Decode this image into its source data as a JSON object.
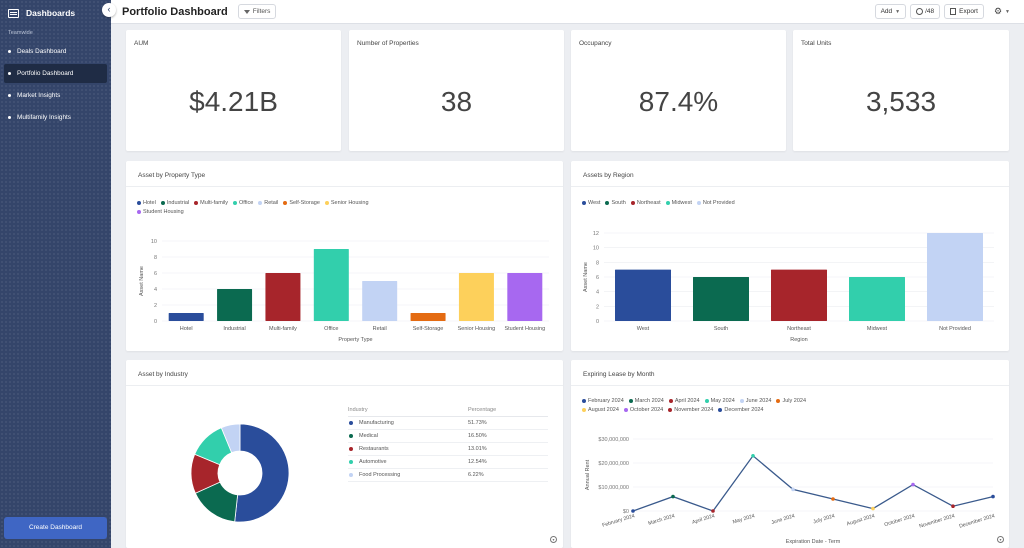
{
  "sidebar": {
    "title": "Dashboards",
    "section": "Teamwide",
    "items": [
      {
        "label": "Deals Dashboard"
      },
      {
        "label": "Portfolio Dashboard"
      },
      {
        "label": "Market Insights"
      },
      {
        "label": "Multifamily Insights"
      }
    ],
    "create_label": "Create Dashboard"
  },
  "header": {
    "title": "Portfolio Dashboard",
    "filters_label": "Filters",
    "add_label": "Add",
    "users_count": "/48",
    "export_label": "Export"
  },
  "kpis": [
    {
      "label": "AUM",
      "value": "$4.21B"
    },
    {
      "label": "Number of Properties",
      "value": "38"
    },
    {
      "label": "Occupancy",
      "value": "87.4%"
    },
    {
      "label": "Total Units",
      "value": "3,533"
    }
  ],
  "property_chart": {
    "title": "Asset by Property Type",
    "chart_data": {
      "type": "bar",
      "categories": [
        "Hotel",
        "Industrial",
        "Multi-family",
        "Office",
        "Retail",
        "Self-Storage",
        "Senior Housing",
        "Student Housing"
      ],
      "values": [
        1,
        4,
        6,
        9,
        5,
        1,
        6,
        6
      ],
      "colors": [
        "#2a4d9b",
        "#0b6a50",
        "#a7252b",
        "#32cfac",
        "#c2d3f4",
        "#e46b12",
        "#fdd05b",
        "#a768f0"
      ],
      "xlabel": "Property Type",
      "ylabel": "Asset Name",
      "ylim": [
        0,
        10
      ],
      "yticks": [
        "0",
        "2",
        "4",
        "6",
        "8",
        "10"
      ],
      "legend": [
        "Hotel",
        "Industrial",
        "Multi-family",
        "Office",
        "Retail",
        "Self-Storage",
        "Senior Housing",
        "Student Housing"
      ],
      "legend_placement": "top-left",
      "grid": true
    }
  },
  "region_chart": {
    "title": "Assets by Region",
    "chart_data": {
      "type": "bar",
      "categories": [
        "West",
        "South",
        "Northeast",
        "Midwest",
        "Not Provided"
      ],
      "values": [
        7,
        6,
        7,
        6,
        12
      ],
      "colors": [
        "#2a4d9b",
        "#0b6a50",
        "#a7252b",
        "#32cfac",
        "#c2d3f4"
      ],
      "xlabel": "Region",
      "ylabel": "Asset Name",
      "ylim": [
        0,
        12
      ],
      "yticks": [
        "0",
        "2",
        "4",
        "6",
        "8",
        "10",
        "12"
      ],
      "legend": [
        "West",
        "South",
        "Northeast",
        "Midwest",
        "Not Provided"
      ],
      "legend_placement": "top-left",
      "grid": true
    }
  },
  "industry_chart": {
    "title": "Asset by Industry",
    "col_industry": "Industry",
    "col_percentage": "Percentage",
    "chart_data": {
      "type": "pie",
      "labels": [
        "Manufacturing",
        "Medical",
        "Restaurants",
        "Automotive",
        "Food Processing"
      ],
      "values": [
        51.73,
        16.5,
        13.01,
        12.54,
        6.22
      ],
      "display": [
        "51.73%",
        "16.50%",
        "13.01%",
        "12.54%",
        "6.22%"
      ],
      "colors": [
        "#2a4d9b",
        "#0b6a50",
        "#a7252b",
        "#32cfac",
        "#c2d3f4"
      ]
    }
  },
  "lease_chart": {
    "title": "Expiring Lease by Month",
    "chart_data": {
      "type": "line",
      "x": [
        "February 2024",
        "March 2024",
        "April 2024",
        "May 2024",
        "June 2024",
        "July 2024",
        "August 2024",
        "October 2024",
        "November 2024",
        "December 2024"
      ],
      "y": [
        0,
        6000000,
        0,
        23000000,
        9000000,
        5000000,
        1000000,
        11000000,
        2000000,
        6000000
      ],
      "point_colors": [
        "#2a4d9b",
        "#0b6a50",
        "#a7252b",
        "#32cfac",
        "#c2d3f4",
        "#e46b12",
        "#fdd05b",
        "#a768f0",
        "#a7252b",
        "#2a4d9b"
      ],
      "line_color": "#3a5a8c",
      "xlabel": "Expiration Date - Term",
      "ylabel": "Annual Rent",
      "ylim": [
        0,
        30000000
      ],
      "yticks": [
        "$0",
        "$10,000,000",
        "$20,000,000",
        "$30,000,000"
      ],
      "legend": [
        "February 2024",
        "March 2024",
        "April 2024",
        "May 2024",
        "June 2024",
        "July 2024",
        "August 2024",
        "October 2024",
        "November 2024",
        "December 2024"
      ],
      "legend_placement": "top-left",
      "grid": true
    }
  }
}
